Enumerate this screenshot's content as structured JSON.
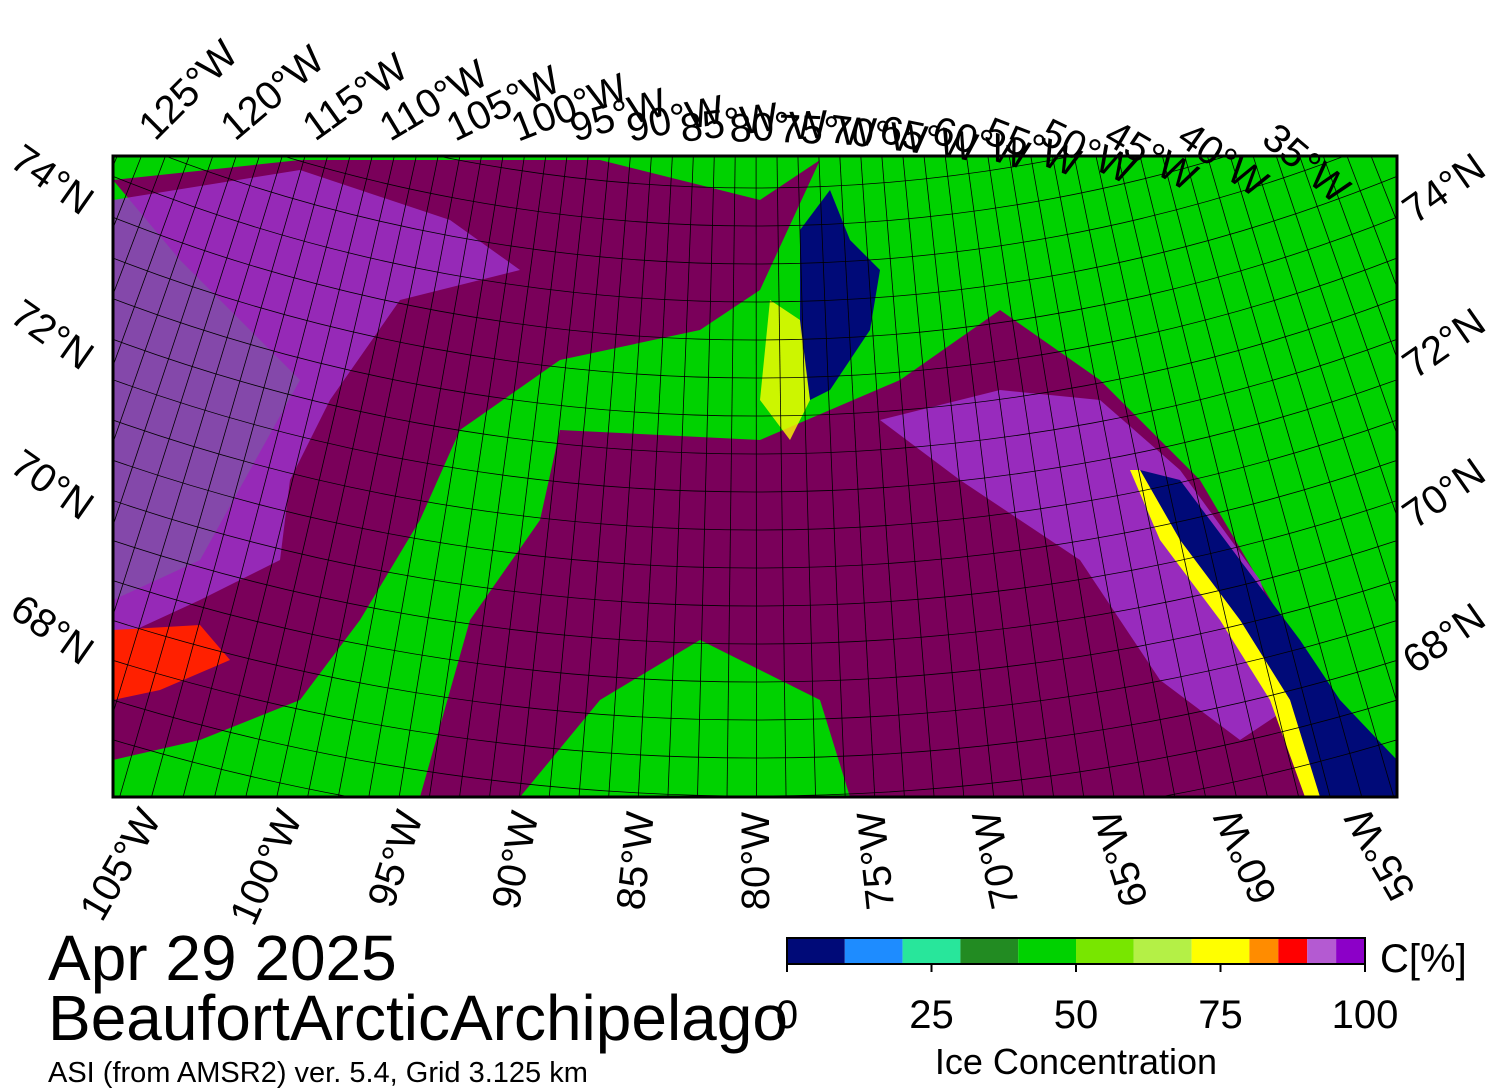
{
  "map": {
    "date": "Apr 29 2025",
    "region": "BeaufortArcticArchipelago",
    "source": "ASI (from AMSR2) ver. 5.4,  Grid 3.125 km",
    "top_lon_labels": [
      "125°W",
      "120°W",
      "115°W",
      "110°W",
      "105°W",
      "100°W",
      "95°W",
      "90°W",
      "85°W",
      "80°W",
      "75°W",
      "70°W",
      "65°W",
      "60°W",
      "55°W",
      "50°W",
      "45°W",
      "40°W",
      "35°W"
    ],
    "left_lat_labels": [
      "74°N",
      "72°N",
      "70°N",
      "68°N"
    ],
    "right_lat_labels": [
      "74°N",
      "72°N",
      "70°N",
      "68°N"
    ],
    "bottom_lon_labels": [
      "105°W",
      "100°W",
      "95°W",
      "90°W",
      "85°W",
      "80°W",
      "75°W",
      "70°W",
      "65°W",
      "60°W",
      "55°W"
    ]
  },
  "colorbar": {
    "title": "Ice Concentration",
    "unit": "C[%]",
    "range": [
      0,
      100
    ],
    "ticks": [
      0,
      25,
      50,
      75,
      100
    ],
    "bin_edges": [
      0,
      10,
      20,
      30,
      40,
      50,
      60,
      70,
      80,
      85,
      90,
      95,
      100
    ],
    "colors": [
      "#000a78",
      "#1e8cff",
      "#28e69b",
      "#228b22",
      "#00d200",
      "#78e600",
      "#b4f046",
      "#ffff00",
      "#ff8c00",
      "#ff0000",
      "#b45ad2",
      "#8c00c8"
    ]
  }
}
